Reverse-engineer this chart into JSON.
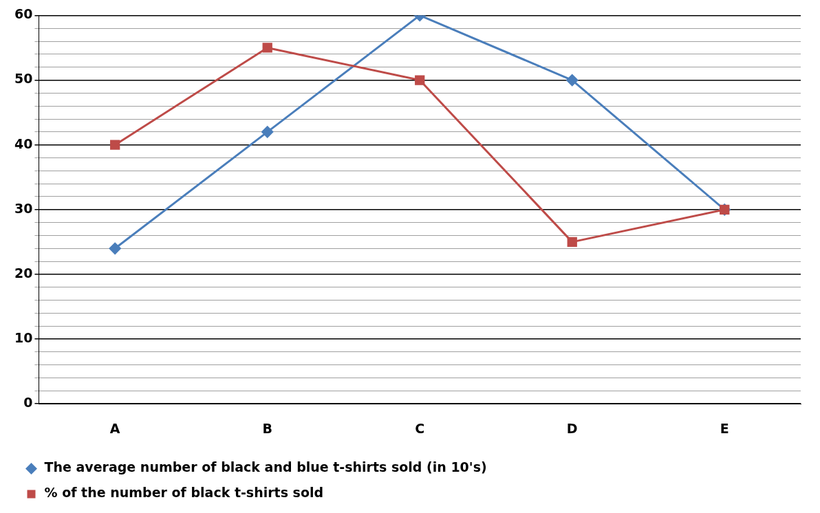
{
  "chart_data": {
    "type": "line",
    "categories": [
      "A",
      "B",
      "C",
      "D",
      "E"
    ],
    "series": [
      {
        "name": "The average number of black and blue t-shirts sold (in 10's)",
        "color": "#4a7ebb",
        "values": [
          24,
          42,
          60,
          50,
          30
        ],
        "marker": "diamond"
      },
      {
        "name": "% of the number of black t-shirts sold",
        "color": "#be4b48",
        "values": [
          40,
          55,
          50,
          25,
          30
        ],
        "marker": "square"
      }
    ],
    "ylim": [
      0,
      60
    ],
    "yticks": [
      0,
      {
        "value": 2,
        "label": null
      },
      {
        "value": 4,
        "label": null
      },
      {
        "value": 6,
        "label": null
      },
      {
        "value": 8,
        "label": null
      },
      10,
      {
        "value": 12,
        "label": null
      },
      {
        "value": 14,
        "label": null
      },
      {
        "value": 16,
        "label": null
      },
      {
        "value": 18,
        "label": null
      },
      20,
      {
        "value": 22,
        "label": null
      },
      {
        "value": 24,
        "label": null
      },
      {
        "value": 26,
        "label": null
      },
      {
        "value": 28,
        "label": null
      },
      30,
      {
        "value": 32,
        "label": null
      },
      {
        "value": 34,
        "label": null
      },
      {
        "value": 36,
        "label": null
      },
      {
        "value": 38,
        "label": null
      },
      40,
      {
        "value": 42,
        "label": null
      },
      {
        "value": 44,
        "label": null
      },
      {
        "value": 46,
        "label": null
      },
      {
        "value": 48,
        "label": null
      },
      50,
      {
        "value": 52,
        "label": null
      },
      {
        "value": 54,
        "label": null
      },
      {
        "value": 56,
        "label": null
      },
      {
        "value": 58,
        "label": null
      },
      60
    ],
    "grid": "y",
    "legend": "bottom",
    "line_style": "solid"
  }
}
